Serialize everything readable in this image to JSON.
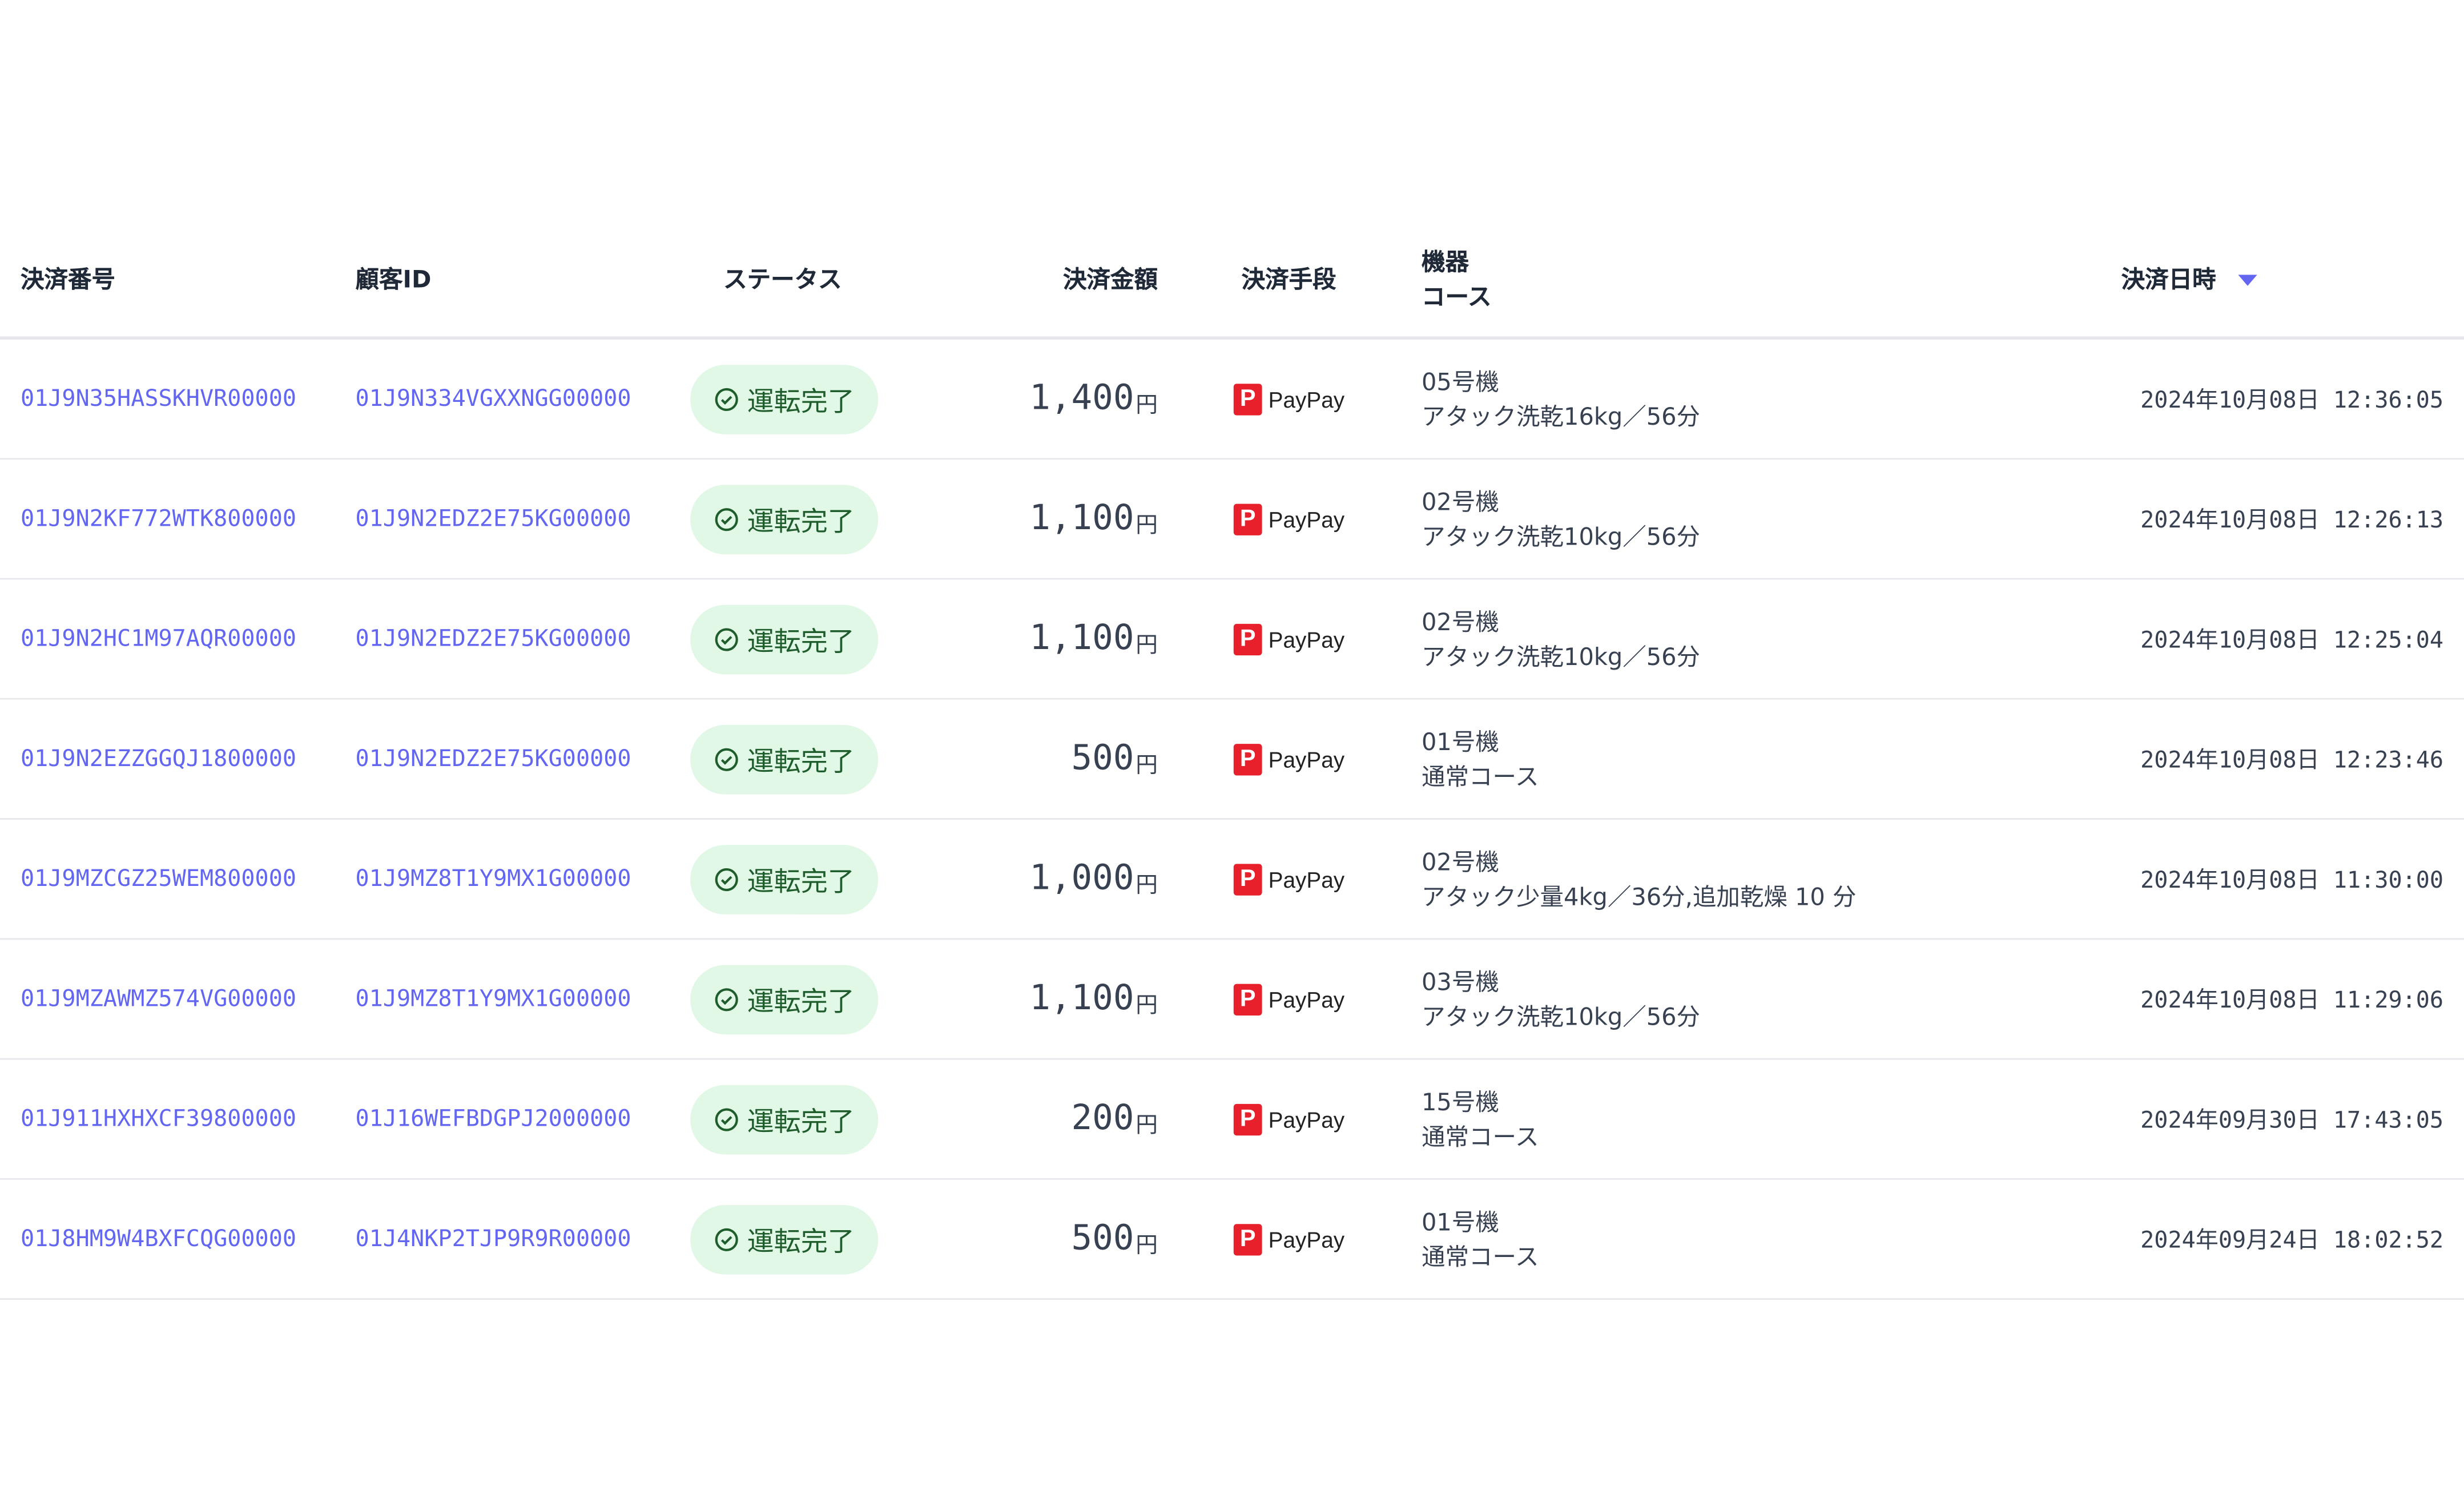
{
  "colors": {
    "link": "#6366f1",
    "status_bg": "#e1f8e7",
    "status_text": "#1f5e2c",
    "paypay": "#e8202b",
    "sort_arrow": "#6366f1"
  },
  "headers": {
    "payment_no": "決済番号",
    "customer_id": "顧客ID",
    "status": "ステータス",
    "amount": "決済金額",
    "method": "決済手段",
    "machine": "機器",
    "course": "コース",
    "datetime": "決済日時",
    "sort": "descending"
  },
  "currency_unit": "円",
  "rows": [
    {
      "payment_no": "01J9N35HASSKHVR00000",
      "customer_id": "01J9N334VGXXNGG00000",
      "status": "運転完了",
      "amount": "1,400",
      "method": "PayPay",
      "machine": "05号機",
      "course": "アタック洗乾16kg／56分",
      "datetime": "2024年10月08日 12:36:05"
    },
    {
      "payment_no": "01J9N2KF772WTK800000",
      "customer_id": "01J9N2EDZ2E75KG00000",
      "status": "運転完了",
      "amount": "1,100",
      "method": "PayPay",
      "machine": "02号機",
      "course": "アタック洗乾10kg／56分",
      "datetime": "2024年10月08日 12:26:13"
    },
    {
      "payment_no": "01J9N2HC1M97AQR00000",
      "customer_id": "01J9N2EDZ2E75KG00000",
      "status": "運転完了",
      "amount": "1,100",
      "method": "PayPay",
      "machine": "02号機",
      "course": "アタック洗乾10kg／56分",
      "datetime": "2024年10月08日 12:25:04"
    },
    {
      "payment_no": "01J9N2EZZGGQJ1800000",
      "customer_id": "01J9N2EDZ2E75KG00000",
      "status": "運転完了",
      "amount": "500",
      "method": "PayPay",
      "machine": "01号機",
      "course": "通常コース",
      "datetime": "2024年10月08日 12:23:46"
    },
    {
      "payment_no": "01J9MZCGZ25WEM800000",
      "customer_id": "01J9MZ8T1Y9MX1G00000",
      "status": "運転完了",
      "amount": "1,000",
      "method": "PayPay",
      "machine": "02号機",
      "course": "アタック少量4kg／36分,追加乾燥 10 分",
      "datetime": "2024年10月08日 11:30:00"
    },
    {
      "payment_no": "01J9MZAWMZ574VG00000",
      "customer_id": "01J9MZ8T1Y9MX1G00000",
      "status": "運転完了",
      "amount": "1,100",
      "method": "PayPay",
      "machine": "03号機",
      "course": "アタック洗乾10kg／56分",
      "datetime": "2024年10月08日 11:29:06"
    },
    {
      "payment_no": "01J911HXHXCF39800000",
      "customer_id": "01J16WEFBDGPJ2000000",
      "status": "運転完了",
      "amount": "200",
      "method": "PayPay",
      "machine": "15号機",
      "course": "通常コース",
      "datetime": "2024年09月30日 17:43:05"
    },
    {
      "payment_no": "01J8HM9W4BXFCQG00000",
      "customer_id": "01J4NKP2TJP9R9R00000",
      "status": "運転完了",
      "amount": "500",
      "method": "PayPay",
      "machine": "01号機",
      "course": "通常コース",
      "datetime": "2024年09月24日 18:02:52"
    }
  ]
}
